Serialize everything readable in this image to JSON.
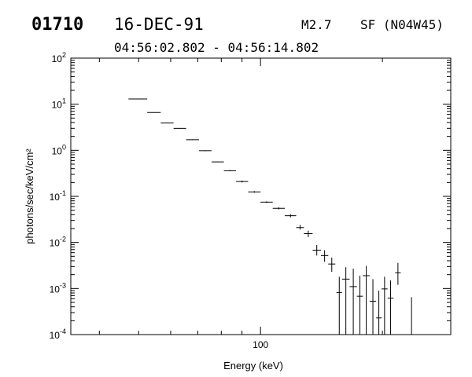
{
  "header": {
    "event_id": "01710",
    "date": "16-DEC-91",
    "flare_class": "M2.7",
    "location": "SF (N04W45)",
    "time_range": "04:56:02.802 - 04:56:14.802"
  },
  "colors": {
    "ink": "#000000",
    "background": "#ffffff"
  },
  "chart_data": {
    "type": "scatter",
    "style": "horizontal bins with vertical error bars",
    "xlabel": "Energy (keV)",
    "ylabel": "photons/sec/keV/cm²",
    "x_scale": "log",
    "y_scale": "log",
    "xlim": [
      34,
      295
    ],
    "ylim": [
      0.0001,
      100
    ],
    "x_tick_labels": [
      {
        "value": 100,
        "label": "100"
      }
    ],
    "y_tick_labels": [
      {
        "value": 100,
        "base": "10",
        "exp": "2"
      },
      {
        "value": 10,
        "base": "10",
        "exp": "1"
      },
      {
        "value": 1,
        "base": "10",
        "exp": "0"
      },
      {
        "value": 0.1,
        "base": "10",
        "exp": "-1"
      },
      {
        "value": 0.01,
        "base": "10",
        "exp": "-2"
      },
      {
        "value": 0.001,
        "base": "10",
        "exp": "-3"
      },
      {
        "value": 0.0001,
        "base": "10",
        "exp": "-4"
      }
    ],
    "grid": false,
    "points": [
      {
        "x0": 47.2,
        "x1": 52.5,
        "y": 13.0,
        "ylo": 12.8,
        "yhi": 13.2
      },
      {
        "x0": 52.5,
        "x1": 56.7,
        "y": 6.6,
        "ylo": 6.5,
        "yhi": 6.7
      },
      {
        "x0": 56.7,
        "x1": 61.0,
        "y": 3.9,
        "ylo": 3.85,
        "yhi": 3.95
      },
      {
        "x0": 61.0,
        "x1": 65.5,
        "y": 3.0,
        "ylo": 2.95,
        "yhi": 3.05
      },
      {
        "x0": 65.5,
        "x1": 70.5,
        "y": 1.7,
        "ylo": 1.67,
        "yhi": 1.73
      },
      {
        "x0": 70.5,
        "x1": 75.7,
        "y": 0.98,
        "ylo": 0.96,
        "yhi": 1.0
      },
      {
        "x0": 75.7,
        "x1": 81.2,
        "y": 0.56,
        "ylo": 0.55,
        "yhi": 0.57
      },
      {
        "x0": 81.2,
        "x1": 87.0,
        "y": 0.36,
        "ylo": 0.35,
        "yhi": 0.37
      },
      {
        "x0": 87.0,
        "x1": 93.2,
        "y": 0.21,
        "ylo": 0.2,
        "yhi": 0.22
      },
      {
        "x0": 93.2,
        "x1": 100.0,
        "y": 0.125,
        "ylo": 0.12,
        "yhi": 0.13
      },
      {
        "x0": 100.0,
        "x1": 107.2,
        "y": 0.075,
        "ylo": 0.072,
        "yhi": 0.078
      },
      {
        "x0": 107.2,
        "x1": 114.8,
        "y": 0.055,
        "ylo": 0.052,
        "yhi": 0.058
      },
      {
        "x0": 114.8,
        "x1": 122.5,
        "y": 0.038,
        "ylo": 0.035,
        "yhi": 0.041
      },
      {
        "x0": 122.5,
        "x1": 128.0,
        "y": 0.021,
        "ylo": 0.019,
        "yhi": 0.024
      },
      {
        "x0": 128.0,
        "x1": 134.5,
        "y": 0.0155,
        "ylo": 0.013,
        "yhi": 0.018
      },
      {
        "x0": 134.5,
        "x1": 141.0,
        "y": 0.0068,
        "ylo": 0.0052,
        "yhi": 0.0088
      },
      {
        "x0": 141.0,
        "x1": 147.0,
        "y": 0.0052,
        "ylo": 0.0038,
        "yhi": 0.0068
      },
      {
        "x0": 147.0,
        "x1": 153.0,
        "y": 0.0034,
        "ylo": 0.0023,
        "yhi": 0.0047
      },
      {
        "x0": 154.0,
        "x1": 159.0,
        "y": 0.00082,
        "ylo": 0.0001,
        "yhi": 0.0018
      },
      {
        "x0": 159.0,
        "x1": 166.0,
        "y": 0.0016,
        "ylo": 0.0001,
        "yhi": 0.0029
      },
      {
        "x0": 166.0,
        "x1": 173.0,
        "y": 0.0011,
        "ylo": 0.0001,
        "yhi": 0.0027
      },
      {
        "x0": 173.0,
        "x1": 179.0,
        "y": 0.00068,
        "ylo": 0.0001,
        "yhi": 0.0019
      },
      {
        "x0": 179.0,
        "x1": 186.0,
        "y": 0.0019,
        "ylo": 0.0001,
        "yhi": 0.0031
      },
      {
        "x0": 186.0,
        "x1": 193.0,
        "y": 0.00053,
        "ylo": 0.0001,
        "yhi": 0.0016
      },
      {
        "x0": 193.0,
        "x1": 199.0,
        "y": 0.00023,
        "ylo": 0.0001,
        "yhi": 0.0009
      },
      {
        "x0": 199.0,
        "x1": 206.0,
        "y": 0.00098,
        "ylo": 0.0001,
        "yhi": 0.0018
      },
      {
        "x0": 206.0,
        "x1": 213.0,
        "y": 0.00062,
        "ylo": 0.0001,
        "yhi": 0.0015
      },
      {
        "x0": 215.0,
        "x1": 222.0,
        "y": 0.0022,
        "ylo": 0.0012,
        "yhi": 0.0036
      }
    ],
    "extra_error_bars": [
      {
        "x": 236.0,
        "ylo": 0.0001,
        "yhi": 0.00065
      }
    ]
  }
}
